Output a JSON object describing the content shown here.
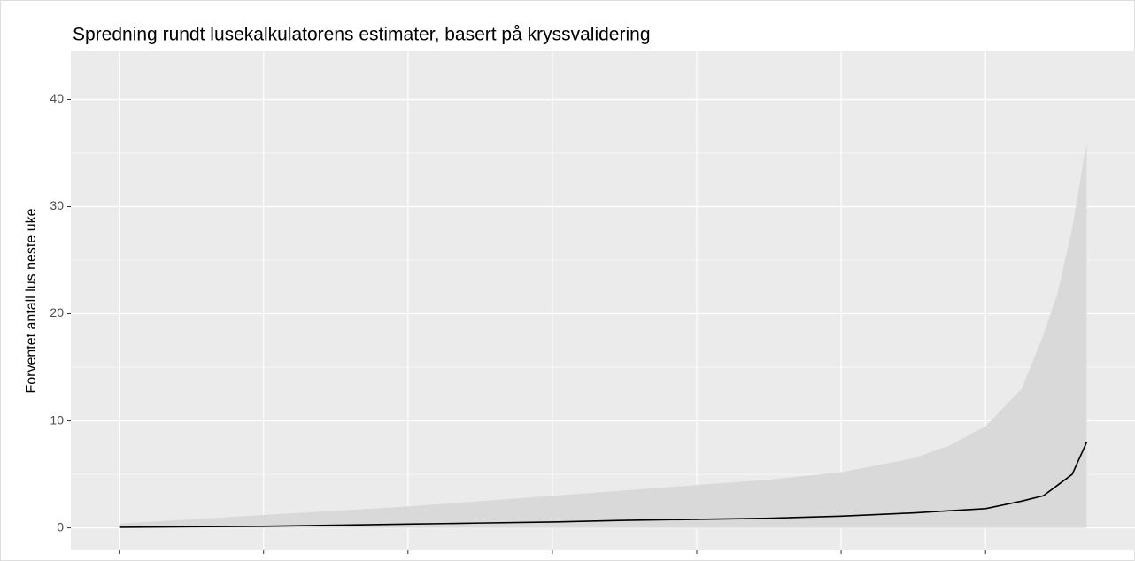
{
  "chart_data": {
    "type": "line",
    "title": "Spredning rundt lusekalkulatorens estimater, basert på kryssvalidering",
    "ylabel": "Forventet antall lus neste uke",
    "x": [
      0,
      100,
      200,
      300,
      400,
      500,
      600,
      700,
      800,
      900,
      1000,
      1100,
      1150,
      1200,
      1250,
      1280,
      1300,
      1320,
      1340
    ],
    "series": [
      {
        "kind": "area",
        "color": "#d9d9d9",
        "values": [
          0.4,
          0.8,
          1.2,
          1.6,
          2.0,
          2.5,
          3.0,
          3.5,
          4.0,
          4.5,
          5.2,
          6.5,
          7.7,
          9.5,
          13,
          18,
          22,
          28,
          36
        ]
      },
      {
        "kind": "line",
        "color": "#000000",
        "values": [
          0.05,
          0.1,
          0.15,
          0.25,
          0.35,
          0.45,
          0.55,
          0.7,
          0.8,
          0.9,
          1.1,
          1.4,
          1.6,
          1.8,
          2.5,
          3.0,
          4.0,
          5.0,
          8.0
        ]
      }
    ],
    "xlim": [
      -67,
      1407
    ],
    "xticks": [
      0,
      200,
      400,
      600,
      800,
      1000,
      1200
    ],
    "ylim": [
      -2.1,
      44.5
    ],
    "yticks": [
      0,
      10,
      20,
      30,
      40
    ],
    "yminorticks": [
      5,
      15,
      25,
      35
    ],
    "grid": true
  }
}
